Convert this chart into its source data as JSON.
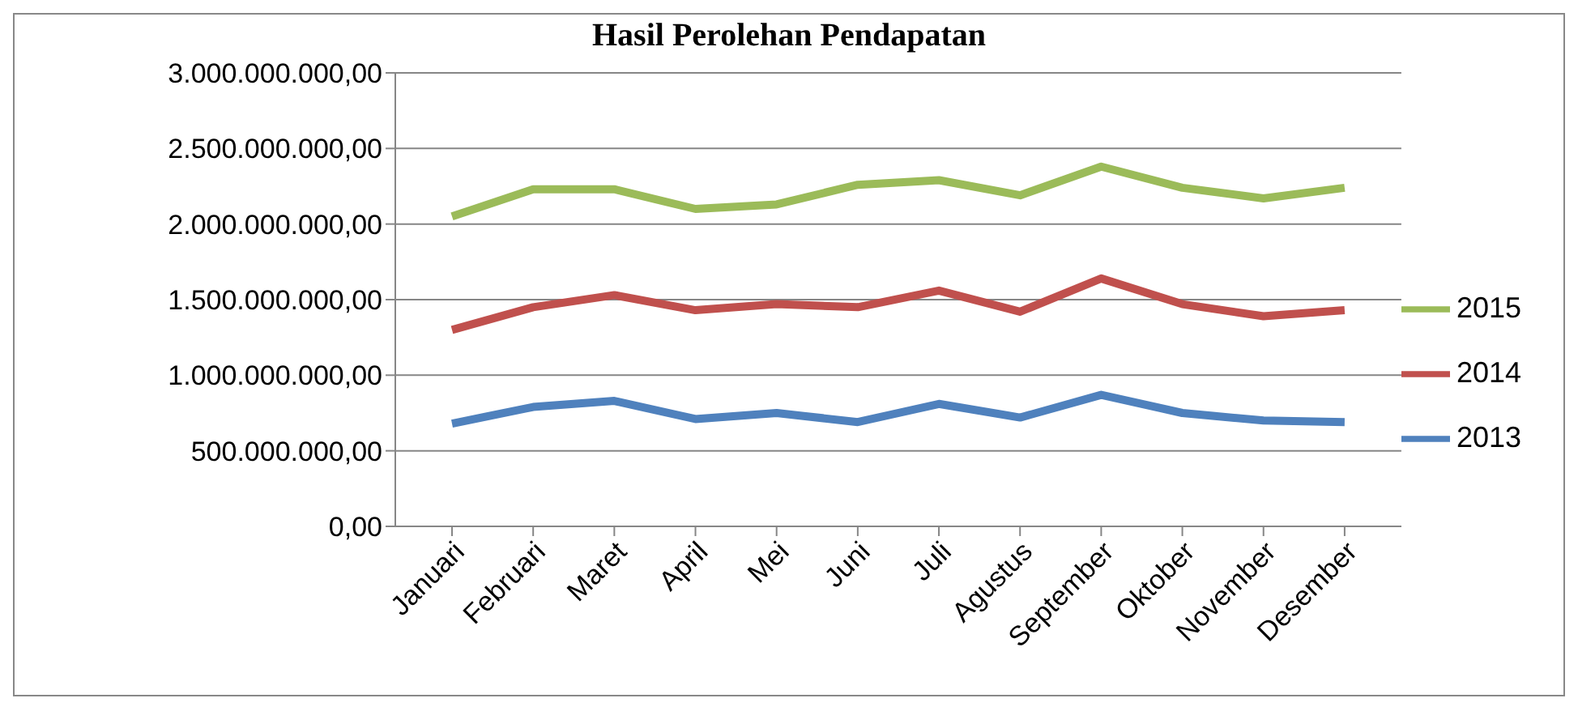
{
  "chart_data": {
    "type": "line",
    "title": "Hasil Perolehan Pendapatan",
    "categories": [
      "Januari",
      "Februari",
      "Maret",
      "April",
      "Mei",
      "Juni",
      "Juli",
      "Agustus",
      "September",
      "Oktober",
      "November",
      "Desember"
    ],
    "series": [
      {
        "name": "2015",
        "color": "#9bbb59",
        "values": [
          2050000000,
          2230000000,
          2230000000,
          2100000000,
          2130000000,
          2260000000,
          2290000000,
          2190000000,
          2380000000,
          2240000000,
          2170000000,
          2240000000
        ]
      },
      {
        "name": "2014",
        "color": "#c0504d",
        "values": [
          1300000000,
          1450000000,
          1530000000,
          1430000000,
          1470000000,
          1450000000,
          1560000000,
          1420000000,
          1640000000,
          1470000000,
          1390000000,
          1430000000
        ]
      },
      {
        "name": "2013",
        "color": "#4f81bd",
        "values": [
          680000000,
          790000000,
          830000000,
          710000000,
          750000000,
          690000000,
          810000000,
          720000000,
          870000000,
          750000000,
          700000000,
          690000000
        ]
      }
    ],
    "ylim": [
      0,
      3000000000
    ],
    "yticks": [
      {
        "value": 0,
        "label": "0,00"
      },
      {
        "value": 500000000,
        "label": "500.000.000,00"
      },
      {
        "value": 1000000000,
        "label": "1.000.000.000,00"
      },
      {
        "value": 1500000000,
        "label": "1.500.000.000,00"
      },
      {
        "value": 2000000000,
        "label": "2.000.000.000,00"
      },
      {
        "value": 2500000000,
        "label": "2.500.000.000,00"
      },
      {
        "value": 3000000000,
        "label": "3.000.000.000,00"
      }
    ],
    "grid": "y",
    "legend": "right",
    "marker": "none",
    "line_style": "solid"
  }
}
